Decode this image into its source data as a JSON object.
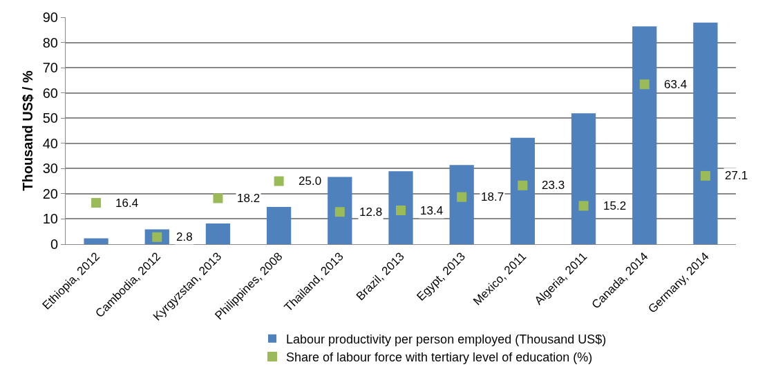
{
  "chart_data": {
    "type": "bar",
    "ylabel": "Thousand US$ / %",
    "categories": [
      "Ethiopia, 2012",
      "Cambodia, 2012",
      "Kyrgyzstan, 2013",
      "Philippines, 2008",
      "Thailand, 2013",
      "Brazil, 2013",
      "Egypt, 2013",
      "Mexico, 2011",
      "Algeria, 2011",
      "Canada, 2014",
      "Germany, 2014"
    ],
    "series": [
      {
        "name": "Labour productivity per person employed (Thousand US$)",
        "color": "#4f81bd",
        "values": [
          2.3,
          5.9,
          8.2,
          14.8,
          26.7,
          28.9,
          31.4,
          42.2,
          51.9,
          86.4,
          87.9
        ]
      },
      {
        "type": "scatter",
        "marker": "square",
        "name": "Share of labour force with tertiary level of education (%)",
        "color": "#9bbb59",
        "values": [
          16.4,
          2.8,
          18.2,
          25.0,
          12.8,
          13.4,
          18.7,
          23.3,
          15.2,
          63.4,
          27.1
        ],
        "value_labels": [
          "16.4",
          "2.8",
          "18.2",
          "25.0",
          "12.8",
          "13.4",
          "18.7",
          "23.3",
          "15.2",
          "63.4",
          "27.1"
        ]
      }
    ],
    "ylim": [
      0,
      90
    ],
    "yticks": [
      0,
      10,
      20,
      30,
      40,
      50,
      60,
      70,
      80,
      90
    ],
    "grid": "y",
    "legend": "bottom"
  }
}
